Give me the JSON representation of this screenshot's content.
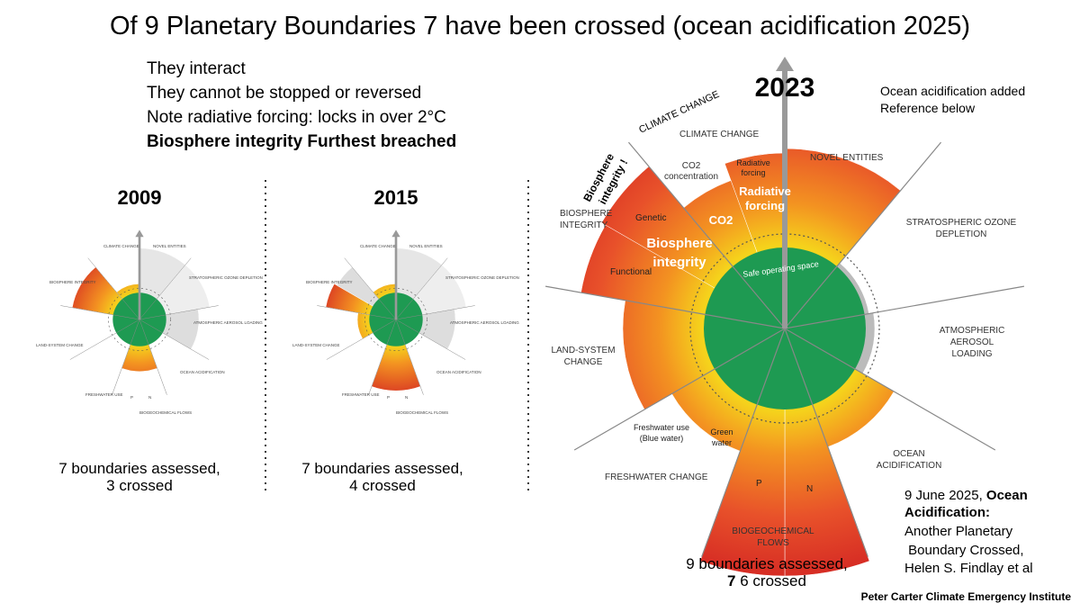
{
  "title": "Of 9 Planetary Boundaries 7 have been crossed (ocean acidification 2025)",
  "notes": [
    "They interact",
    "They cannot be stopped or reversed",
    "Note radiative forcing: locks in over 2°C",
    "Biosphere integrity Furthest  breached"
  ],
  "panels": [
    {
      "year": "2009",
      "caption": [
        "7 boundaries assessed,",
        "3 crossed"
      ],
      "labels": [
        "CLIMATE CHANGE",
        "NOVEL ENTITIES",
        "STRATOSPHERIC OZONE DEPLETION",
        "ATMOSPHERIC AEROSOL LOADING",
        "OCEAN ACIDIFICATION",
        "BIOGEOCHEMICAL FLOWS",
        "FRESHWATER USE",
        "LAND-SYSTEM CHANGE",
        "BIOSPHERE INTEGRITY",
        "P",
        "N"
      ]
    },
    {
      "year": "2015",
      "caption": [
        "7 boundaries assessed,",
        "4 crossed"
      ],
      "labels": [
        "CLIMATE CHANGE",
        "NOVEL ENTITIES",
        "STRATOSPHERIC OZONE DEPLETION",
        "ATMOSPHERIC AEROSOL LOADING",
        "OCEAN ACIDIFICATION",
        "BIOGEOCHEMICAL FLOWS",
        "FRESHWATER USE",
        "LAND-SYSTEM CHANGE",
        "BIOSPHERE INTEGRITY",
        "P",
        "N"
      ]
    }
  ],
  "main": {
    "year": "2023",
    "side_note": [
      "Ocean acidification added",
      "Reference below"
    ],
    "labels": {
      "climate_change_tilted": "CLIMATE CHANGE",
      "climate_change": "CLIMATE CHANGE",
      "co2_concentration": [
        "CO2",
        "concentration"
      ],
      "radiative_forcing": [
        "Radiative",
        "forcing"
      ],
      "novel_entities": "NOVEL ENTITIES",
      "ozone": [
        "STRATOSPHERIC OZONE",
        "DEPLETION"
      ],
      "aerosol": [
        "ATMOSPHERIC",
        "AEROSOL",
        "LOADING"
      ],
      "ocean": [
        "OCEAN",
        "ACIDIFICATION"
      ],
      "biogeochemical": [
        "BIOGEOCHEMICAL",
        "FLOWS"
      ],
      "p": "P",
      "n": "N",
      "freshwater_change": "FRESHWATER CHANGE",
      "blue_water": [
        "Freshwater use",
        "(Blue water)"
      ],
      "green_water": [
        "Green",
        "water"
      ],
      "land": [
        "LAND-SYSTEM",
        "CHANGE"
      ],
      "biosphere": [
        "BIOSPHERE",
        "INTEGRITY"
      ],
      "genetic": "Genetic",
      "functional": "Functional",
      "safe_space": "Safe operating space"
    },
    "overlays": {
      "biosphere_tilted": [
        "Biosphere",
        "integrity !"
      ],
      "radiative": [
        "Radiative",
        "forcing"
      ],
      "co2": "CO2",
      "biosphere": [
        "Biosphere",
        "integrity"
      ]
    },
    "caption": [
      "9 boundaries assessed,",
      "7",
      " 6 crossed"
    ],
    "reference": [
      "9 June 2025, ",
      "Ocean",
      "Acidification:",
      "Another Planetary",
      " Boundary Crossed,",
      "Helen S. Findlay et al"
    ]
  },
  "credit": "Peter Carter Climate Emergency Institute"
}
